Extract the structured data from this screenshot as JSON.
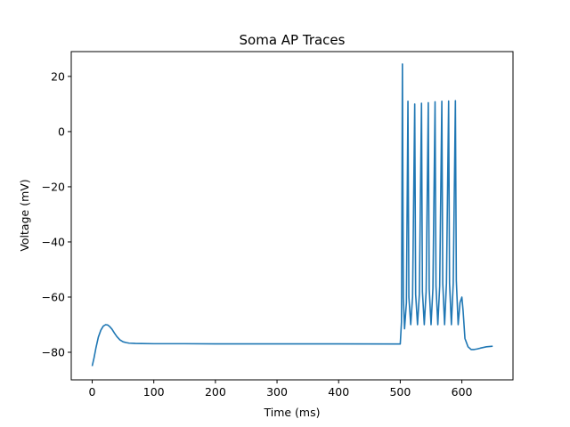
{
  "chart_data": {
    "type": "line",
    "title": "Soma AP Traces",
    "xlabel": "Time (ms)",
    "ylabel": "Voltage (mV)",
    "xlim": [
      -34,
      683
    ],
    "ylim": [
      -90,
      29
    ],
    "xticks": [
      0,
      100,
      200,
      300,
      400,
      500,
      600
    ],
    "yticks": [
      -80,
      -60,
      -40,
      -20,
      0,
      20
    ],
    "grid": false,
    "series": [
      {
        "color": "#1f77b4",
        "x": [
          0,
          3,
          6,
          10,
          14,
          18,
          22,
          25,
          28,
          32,
          36,
          40,
          45,
          50,
          55,
          60,
          70,
          80,
          100,
          150,
          200,
          300,
          400,
          500,
          502,
          503.5,
          505,
          507,
          510,
          512.5,
          514,
          517,
          520,
          523.5,
          525,
          528,
          531,
          534.5,
          536,
          539,
          542,
          545.5,
          547,
          550,
          553,
          556.5,
          558,
          561,
          564,
          567.5,
          569,
          572,
          575,
          578.5,
          580,
          583,
          586,
          589.5,
          591,
          594,
          597,
          600,
          602,
          605,
          610,
          615,
          620,
          625,
          630,
          640,
          650
        ],
        "y": [
          -85,
          -82,
          -78.5,
          -74.5,
          -72,
          -70.5,
          -70,
          -70.1,
          -70.6,
          -71.6,
          -73,
          -74.3,
          -75.5,
          -76.2,
          -76.5,
          -76.7,
          -76.8,
          -76.85,
          -76.9,
          -76.9,
          -76.95,
          -76.95,
          -76.95,
          -77,
          -69,
          24.5,
          -60,
          -71.5,
          -62,
          11,
          -60,
          -70,
          -60,
          10,
          -59,
          -70,
          -59,
          10.3,
          -58,
          -70,
          -58,
          10.5,
          -57,
          -70,
          -57,
          10.8,
          -56,
          -70,
          -56,
          11,
          -55,
          -70,
          -55,
          11.1,
          -55,
          -70,
          -55,
          11.2,
          -54,
          -70,
          -62,
          -60,
          -65,
          -75,
          -78,
          -79,
          -79,
          -78.8,
          -78.5,
          -78,
          -77.8
        ]
      }
    ]
  }
}
